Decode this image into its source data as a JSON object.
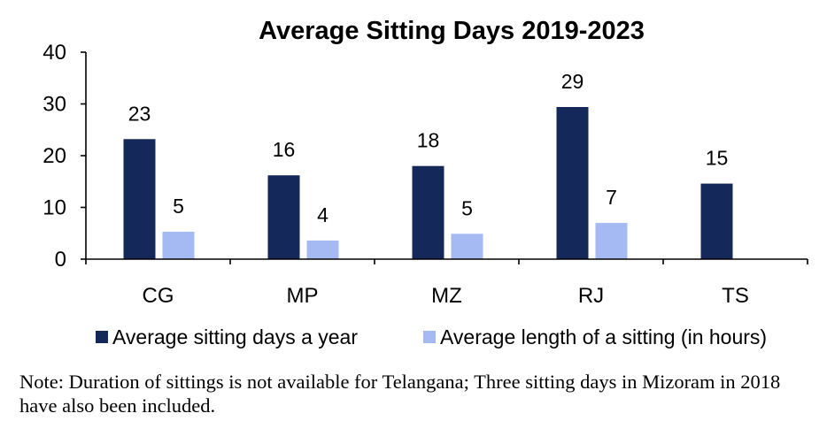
{
  "chart_data": {
    "type": "bar",
    "title": "Average Sitting Days 2019-2023",
    "categories": [
      "CG",
      "MP",
      "MZ",
      "RJ",
      "TS"
    ],
    "series": [
      {
        "name": "Average sitting days a year",
        "color": "#14285a",
        "values": [
          23.2,
          16.2,
          18,
          29.4,
          14.6
        ],
        "labels": [
          "23",
          "16",
          "18",
          "29",
          "15"
        ]
      },
      {
        "name": "Average length of a sitting (in hours)",
        "color": "#a5baf3",
        "values": [
          5.3,
          3.6,
          4.9,
          7,
          null
        ],
        "labels": [
          "5",
          "4",
          "5",
          "7",
          ""
        ]
      }
    ],
    "ylim": [
      0,
      40
    ],
    "yticks": [
      "0",
      "10",
      "20",
      "30",
      "40"
    ],
    "xlabel": "",
    "ylabel": "",
    "grid": false,
    "legend_position": "bottom"
  },
  "note": "Note: Duration of sittings is not available for Telangana; Three sitting days in Mizoram in 2018 have also been included."
}
